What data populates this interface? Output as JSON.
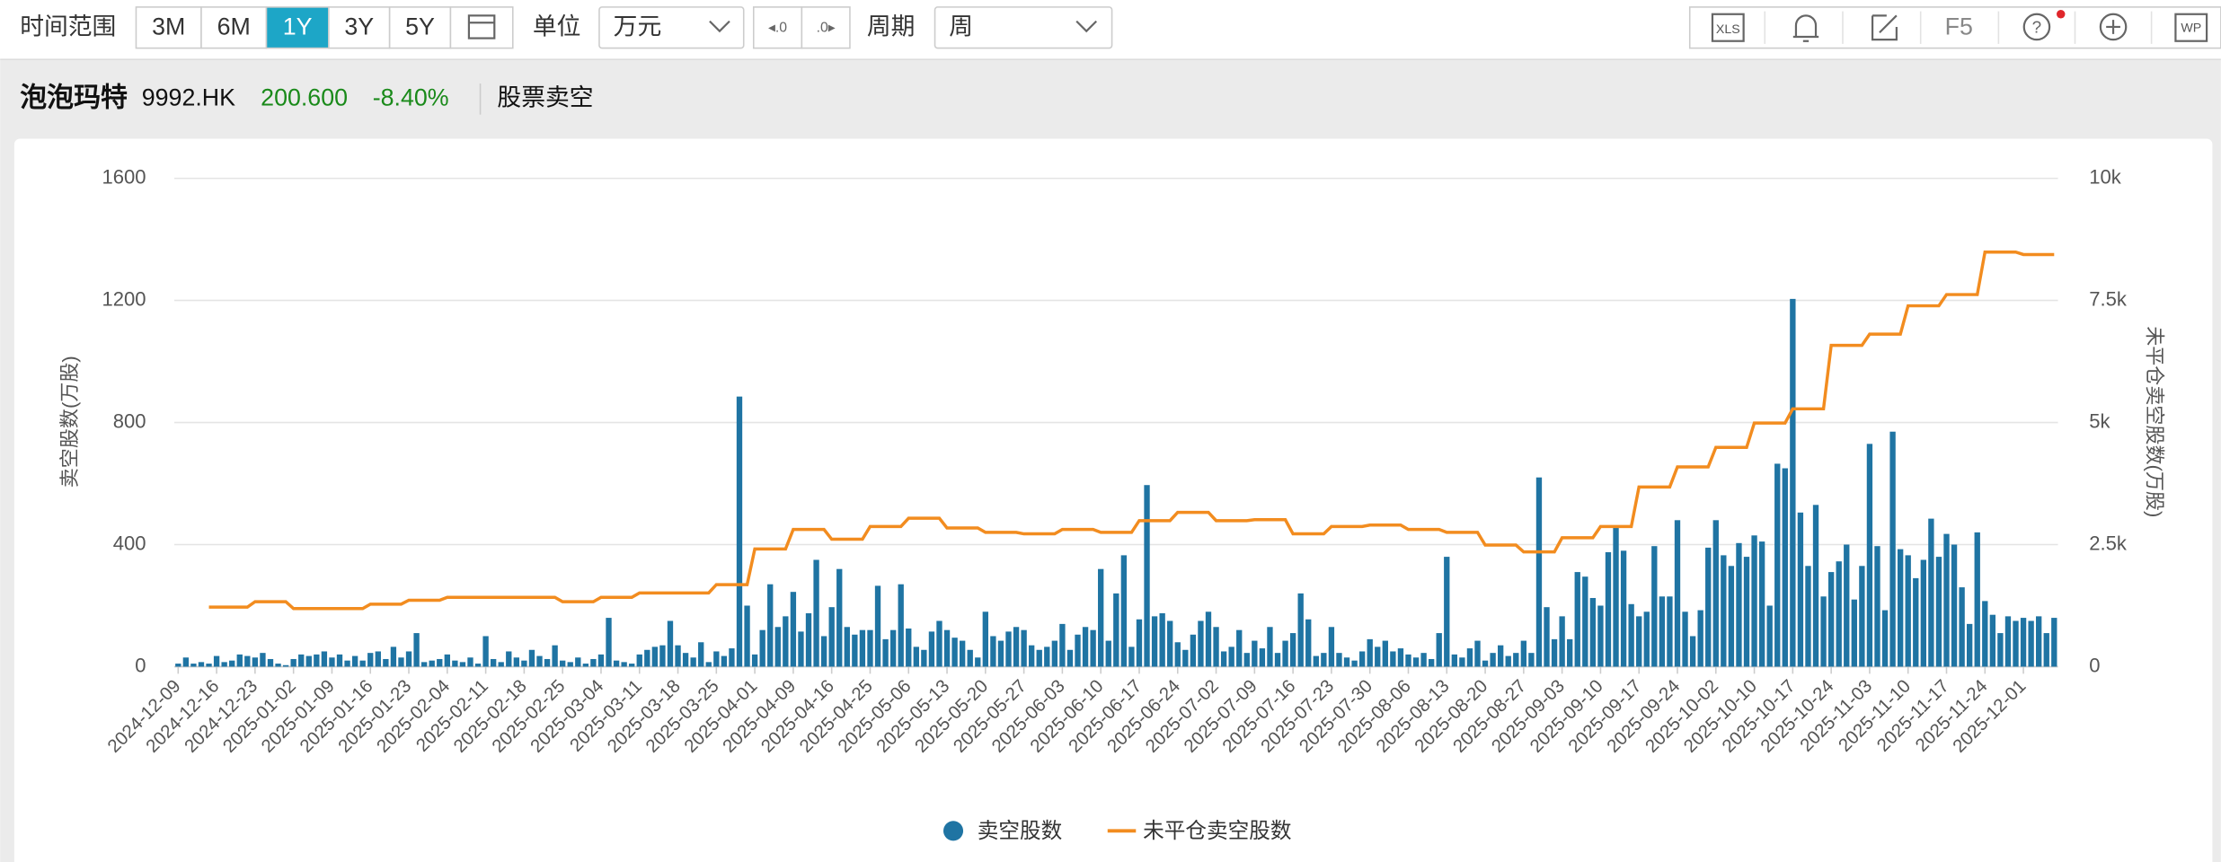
{
  "toolbar": {
    "range_label": "时间范围",
    "ranges": [
      "3M",
      "6M",
      "1Y",
      "3Y",
      "5Y"
    ],
    "active_range": "1Y",
    "unit_label": "单位",
    "unit": "万元",
    "period_label": "周期",
    "period": "周",
    "xls": "XLS",
    "f5": "F5",
    "wp": "WP"
  },
  "header": {
    "name": "泡泡玛特",
    "code": "9992.HK",
    "price": "200.600",
    "change": "-8.40%",
    "section": "股票卖空"
  },
  "chart_data": {
    "type": "combo",
    "y_label": "卖空股数(万股)",
    "y2_label": "未平仓卖空股数(万股)",
    "ylim": [
      0,
      1600
    ],
    "yticks": [
      0,
      400,
      800,
      1200,
      1600
    ],
    "y2lim": [
      0,
      10000
    ],
    "y2ticks": [
      0,
      {
        "value": 2500,
        "label": "2.5k"
      },
      {
        "value": 5000,
        "label": "5k"
      },
      {
        "value": 7500,
        "label": "7.5k"
      },
      {
        "value": 10000,
        "label": "10k"
      }
    ],
    "grid": true,
    "legend": "bottom",
    "categories": [
      "2024-12-09",
      null,
      null,
      null,
      null,
      "2024-12-16",
      null,
      null,
      null,
      null,
      "2024-12-23",
      null,
      null,
      null,
      null,
      "2025-01-02",
      null,
      null,
      null,
      null,
      "2025-01-09",
      null,
      null,
      null,
      null,
      "2025-01-16",
      null,
      null,
      null,
      null,
      "2025-01-23",
      null,
      null,
      null,
      null,
      "2025-02-04",
      null,
      null,
      null,
      null,
      "2025-02-11",
      null,
      null,
      null,
      null,
      "2025-02-18",
      null,
      null,
      null,
      null,
      "2025-02-25",
      null,
      null,
      null,
      null,
      "2025-03-04",
      null,
      null,
      null,
      null,
      "2025-03-11",
      null,
      null,
      null,
      null,
      "2025-03-18",
      null,
      null,
      null,
      null,
      "2025-03-25",
      null,
      null,
      null,
      null,
      "2025-04-01",
      null,
      null,
      null,
      null,
      "2025-04-09",
      null,
      null,
      null,
      null,
      "2025-04-16",
      null,
      null,
      null,
      null,
      "2025-04-25",
      null,
      null,
      null,
      null,
      "2025-05-06",
      null,
      null,
      null,
      null,
      "2025-05-13",
      null,
      null,
      null,
      null,
      "2025-05-20",
      null,
      null,
      null,
      null,
      "2025-05-27",
      null,
      null,
      null,
      null,
      "2025-06-03",
      null,
      null,
      null,
      null,
      "2025-06-10",
      null,
      null,
      null,
      null,
      "2025-06-17",
      null,
      null,
      null,
      null,
      "2025-06-24",
      null,
      null,
      null,
      null,
      "2025-07-02",
      null,
      null,
      null,
      null,
      "2025-07-09",
      null,
      null,
      null,
      null,
      "2025-07-16",
      null,
      null,
      null,
      null,
      "2025-07-23",
      null,
      null,
      null,
      null,
      "2025-07-30",
      null,
      null,
      null,
      null,
      "2025-08-06",
      null,
      null,
      null,
      null,
      "2025-08-13",
      null,
      null,
      null,
      null,
      "2025-08-20",
      null,
      null,
      null,
      null,
      "2025-08-27",
      null,
      null,
      null,
      null,
      "2025-09-03",
      null,
      null,
      null,
      null,
      "2025-09-10",
      null,
      null,
      null,
      null,
      "2025-09-17",
      null,
      null,
      null,
      null,
      "2025-09-24",
      null,
      null,
      null,
      null,
      "2025-10-02",
      null,
      null,
      null,
      null,
      "2025-10-10",
      null,
      null,
      null,
      null,
      "2025-10-17",
      null,
      null,
      null,
      null,
      "2025-10-24",
      null,
      null,
      null,
      null,
      "2025-11-03",
      null,
      null,
      null,
      null,
      "2025-11-10",
      null,
      null,
      null,
      null,
      "2025-11-17",
      null,
      null,
      null,
      null,
      "2025-11-24",
      null,
      null,
      null,
      null,
      "2025-12-01",
      null,
      null,
      null,
      null
    ],
    "series": [
      {
        "name": "卖空股数",
        "type": "bar",
        "color": "#1f74a3",
        "values": [
          10,
          30,
          10,
          15,
          10,
          35,
          15,
          20,
          40,
          35,
          30,
          45,
          25,
          10,
          5,
          25,
          40,
          35,
          40,
          50,
          30,
          40,
          20,
          35,
          20,
          45,
          50,
          25,
          65,
          30,
          50,
          110,
          15,
          20,
          25,
          40,
          20,
          15,
          30,
          10,
          100,
          25,
          15,
          50,
          30,
          20,
          55,
          35,
          25,
          70,
          20,
          15,
          30,
          10,
          25,
          40,
          160,
          20,
          15,
          10,
          40,
          55,
          65,
          70,
          150,
          70,
          45,
          30,
          80,
          15,
          50,
          35,
          60,
          885,
          200,
          40,
          120,
          270,
          130,
          165,
          245,
          115,
          175,
          350,
          100,
          195,
          320,
          130,
          105,
          120,
          120,
          265,
          90,
          120,
          270,
          125,
          65,
          55,
          115,
          150,
          120,
          95,
          85,
          55,
          30,
          180,
          100,
          85,
          115,
          130,
          120,
          70,
          55,
          65,
          85,
          140,
          55,
          105,
          130,
          120,
          320,
          85,
          240,
          365,
          65,
          155,
          595,
          165,
          175,
          150,
          80,
          55,
          105,
          150,
          180,
          130,
          50,
          65,
          120,
          45,
          85,
          60,
          130,
          45,
          85,
          110,
          240,
          155,
          35,
          45,
          130,
          45,
          30,
          20,
          50,
          90,
          65,
          85,
          50,
          60,
          40,
          30,
          45,
          25,
          110,
          360,
          40,
          30,
          60,
          85,
          20,
          45,
          70,
          35,
          45,
          85,
          45,
          620,
          195,
          90,
          165,
          90,
          310,
          295,
          225,
          200,
          375,
          455,
          380,
          205,
          165,
          180,
          395,
          230,
          230,
          480,
          180,
          100,
          185,
          390,
          480,
          365,
          330,
          405,
          360,
          430,
          410,
          200,
          665,
          650,
          1205,
          505,
          330,
          530,
          230,
          310,
          345,
          400,
          220,
          330,
          730,
          395,
          185,
          770,
          385,
          365,
          290,
          350,
          485,
          360,
          435,
          400,
          260,
          140,
          440,
          215,
          170,
          110,
          165,
          150,
          160,
          150,
          165,
          110,
          160
        ]
      },
      {
        "name": "未平仓卖空股数",
        "type": "line",
        "axis": "y2",
        "color": "#f28c1f",
        "values": [
          null,
          null,
          null,
          null,
          1220,
          1220,
          1220,
          1220,
          1220,
          1220,
          1330,
          1330,
          1330,
          1330,
          1330,
          1190,
          1190,
          1190,
          1190,
          1190,
          1190,
          1190,
          1190,
          1190,
          1190,
          1280,
          1280,
          1280,
          1280,
          1280,
          1360,
          1360,
          1360,
          1360,
          1360,
          1420,
          1420,
          1420,
          1420,
          1420,
          1420,
          1420,
          1420,
          1420,
          1420,
          1420,
          1420,
          1420,
          1420,
          1420,
          1330,
          1330,
          1330,
          1330,
          1330,
          1420,
          1420,
          1420,
          1420,
          1420,
          1510,
          1510,
          1510,
          1510,
          1510,
          1510,
          1510,
          1510,
          1510,
          1510,
          1680,
          1680,
          1680,
          1680,
          1680,
          2410,
          2410,
          2410,
          2410,
          2410,
          2810,
          2810,
          2810,
          2810,
          2810,
          2610,
          2610,
          2610,
          2610,
          2610,
          2870,
          2870,
          2870,
          2870,
          2870,
          3040,
          3040,
          3040,
          3040,
          3040,
          2840,
          2840,
          2840,
          2840,
          2840,
          2750,
          2750,
          2750,
          2750,
          2750,
          2720,
          2720,
          2720,
          2720,
          2720,
          2810,
          2810,
          2810,
          2810,
          2810,
          2750,
          2750,
          2750,
          2750,
          2750,
          2990,
          2990,
          2990,
          2990,
          2990,
          3160,
          3160,
          3160,
          3160,
          3160,
          2990,
          2990,
          2990,
          2990,
          2990,
          3010,
          3010,
          3010,
          3010,
          3010,
          2720,
          2720,
          2720,
          2720,
          2720,
          2870,
          2870,
          2870,
          2870,
          2870,
          2900,
          2900,
          2900,
          2900,
          2900,
          2810,
          2810,
          2810,
          2810,
          2810,
          2750,
          2750,
          2750,
          2750,
          2750,
          2490,
          2490,
          2490,
          2490,
          2490,
          2350,
          2350,
          2350,
          2350,
          2350,
          2640,
          2640,
          2640,
          2640,
          2640,
          2870,
          2870,
          2870,
          2870,
          2870,
          3680,
          3680,
          3680,
          3680,
          3680,
          4090,
          4090,
          4090,
          4090,
          4090,
          4490,
          4490,
          4490,
          4490,
          4490,
          4990,
          4990,
          4990,
          4990,
          4990,
          5280,
          5280,
          5280,
          5280,
          5280,
          6580,
          6580,
          6580,
          6580,
          6580,
          6810,
          6810,
          6810,
          6810,
          6810,
          7390,
          7390,
          7390,
          7390,
          7390,
          7620,
          7620,
          7620,
          7620,
          7620,
          8490,
          8490,
          8490,
          8490,
          8490,
          8440,
          8440,
          8440,
          8440,
          8440
        ]
      }
    ]
  }
}
